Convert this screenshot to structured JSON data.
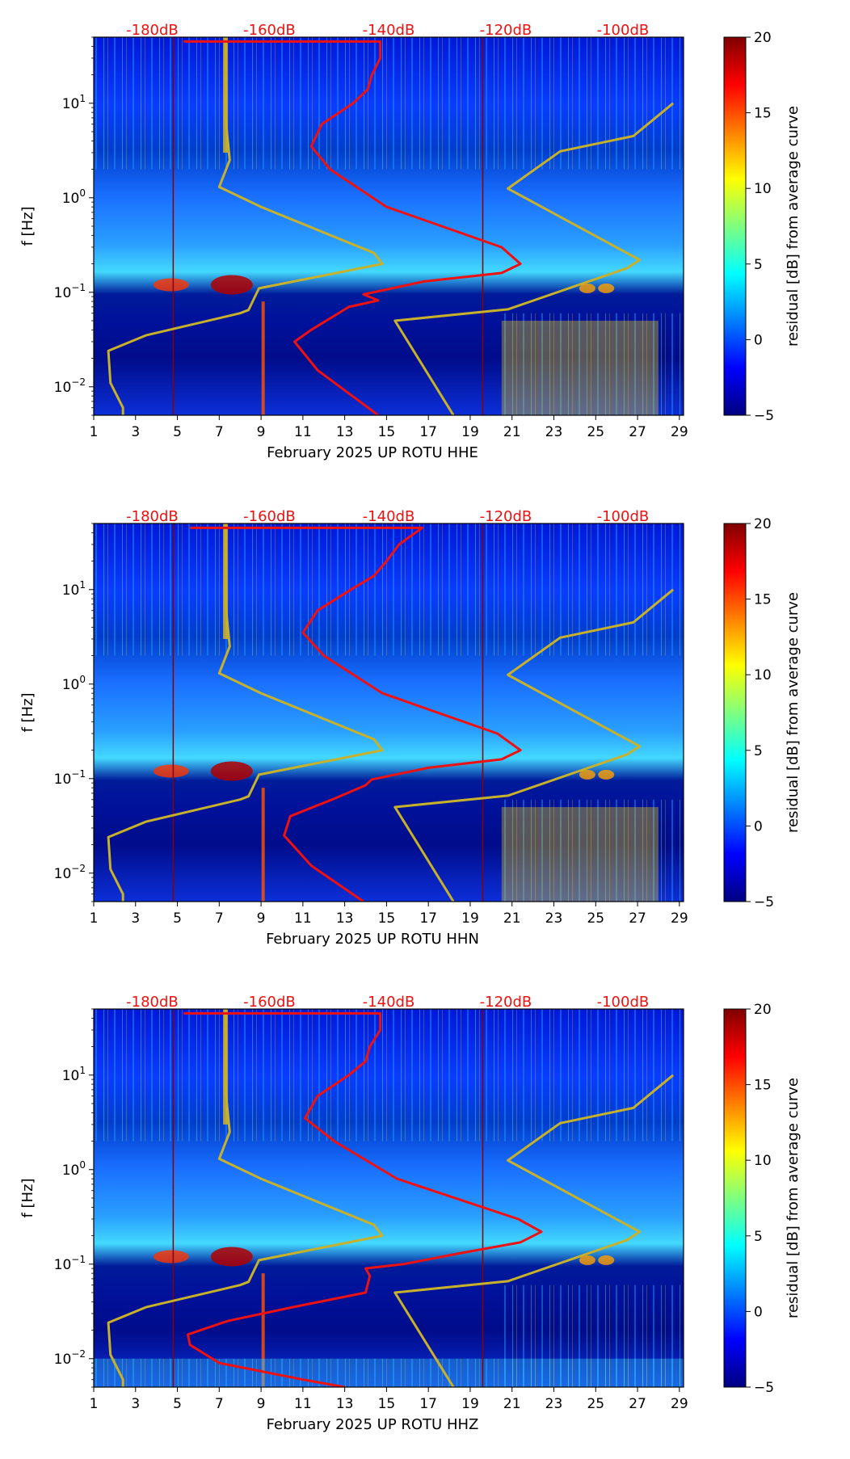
{
  "colors": {
    "noise_model": "#c8b12a",
    "psd_curve": "#ee1111",
    "db_scale_text": "#ee1111",
    "marker_line": "#8b0000",
    "colormap": [
      "#00007f",
      "#0000ff",
      "#007fff",
      "#00ffff",
      "#7fff7f",
      "#ffff00",
      "#ff7f00",
      "#ff0000",
      "#7f0000"
    ]
  },
  "chart_data": [
    {
      "type": "heatmap",
      "title": "",
      "xlabel": "February 2025 UP ROTU  HHE",
      "ylabel": "f [Hz]",
      "xlim": [
        1,
        29.2
      ],
      "ylim": [
        0.005,
        50
      ],
      "yscale": "log",
      "x_ticks": [
        1,
        3,
        5,
        7,
        9,
        11,
        13,
        15,
        17,
        19,
        21,
        23,
        25,
        27,
        29
      ],
      "y_ticks": [
        {
          "value": 0.01,
          "base": "10",
          "exp": "−2"
        },
        {
          "value": 0.1,
          "base": "10",
          "exp": "−1"
        },
        {
          "value": 1,
          "base": "10",
          "exp": "0"
        },
        {
          "value": 10,
          "base": "10",
          "exp": "1"
        }
      ],
      "db_scale": {
        "labels": [
          "-180dB",
          "-160dB",
          "-140dB",
          "-120dB",
          "-100dB"
        ],
        "positions": [
          3.8,
          9.4,
          15.1,
          20.7,
          26.3
        ]
      },
      "colorbar": {
        "label": "residual [dB] from average curve",
        "range": [
          -5,
          20
        ],
        "ticks": [
          "−5",
          "0",
          "5",
          "10",
          "15",
          "20"
        ],
        "tick_values": [
          -5,
          0,
          5,
          10,
          15,
          20
        ]
      },
      "marker_lines_x": [
        4.8,
        19.6
      ],
      "series": [
        {
          "name": "noise model",
          "points": [
            [
              2.4,
              0.005
            ],
            [
              2.4,
              0.006
            ],
            [
              1.8,
              0.011
            ],
            [
              1.7,
              0.024
            ],
            [
              3.5,
              0.035
            ],
            [
              8.0,
              0.06
            ],
            [
              8.4,
              0.065
            ],
            [
              8.9,
              0.11
            ],
            [
              14.8,
              0.2
            ],
            [
              14.4,
              0.26
            ],
            [
              9.0,
              0.8
            ],
            [
              7.0,
              1.3
            ],
            [
              7.5,
              2.5
            ],
            [
              7.3,
              7.0
            ],
            [
              7.3,
              50
            ]
          ]
        },
        {
          "name": "noise model",
          "points": [
            [
              18.2,
              0.005
            ],
            [
              15.4,
              0.05
            ],
            [
              20.8,
              0.066
            ],
            [
              26.5,
              0.18
            ],
            [
              27.1,
              0.22
            ],
            [
              20.8,
              1.25
            ],
            [
              23.3,
              3.1
            ],
            [
              26.8,
              4.5
            ],
            [
              28.7,
              10
            ]
          ]
        },
        {
          "name": "PSD curve",
          "points": [
            [
              14.6,
              0.005
            ],
            [
              11.7,
              0.015
            ],
            [
              10.6,
              0.03
            ],
            [
              11.4,
              0.04
            ],
            [
              13.2,
              0.07
            ],
            [
              14.6,
              0.082
            ],
            [
              13.9,
              0.095
            ],
            [
              16.8,
              0.13
            ],
            [
              20.5,
              0.16
            ],
            [
              21.4,
              0.2
            ],
            [
              20.5,
              0.3
            ],
            [
              15.0,
              0.8
            ],
            [
              12.3,
              2.0
            ],
            [
              11.4,
              3.5
            ],
            [
              11.9,
              6.0
            ],
            [
              13.4,
              10.0
            ],
            [
              14.1,
              14.0
            ],
            [
              14.3,
              20.0
            ],
            [
              14.7,
              30.0
            ],
            [
              14.7,
              45.0
            ],
            [
              5.3,
              45.0
            ]
          ]
        }
      ]
    },
    {
      "type": "heatmap",
      "title": "",
      "xlabel": "February 2025 UP ROTU  HHN",
      "ylabel": "f [Hz]",
      "xlim": [
        1,
        29.2
      ],
      "ylim": [
        0.005,
        50
      ],
      "yscale": "log",
      "x_ticks": [
        1,
        3,
        5,
        7,
        9,
        11,
        13,
        15,
        17,
        19,
        21,
        23,
        25,
        27,
        29
      ],
      "y_ticks": [
        {
          "value": 0.01,
          "base": "10",
          "exp": "−2"
        },
        {
          "value": 0.1,
          "base": "10",
          "exp": "−1"
        },
        {
          "value": 1,
          "base": "10",
          "exp": "0"
        },
        {
          "value": 10,
          "base": "10",
          "exp": "1"
        }
      ],
      "db_scale": {
        "labels": [
          "-180dB",
          "-160dB",
          "-140dB",
          "-120dB",
          "-100dB"
        ],
        "positions": [
          3.8,
          9.4,
          15.1,
          20.7,
          26.3
        ]
      },
      "colorbar": {
        "label": "residual [dB] from average curve",
        "range": [
          -5,
          20
        ],
        "ticks": [
          "−5",
          "0",
          "5",
          "10",
          "15",
          "20"
        ],
        "tick_values": [
          -5,
          0,
          5,
          10,
          15,
          20
        ]
      },
      "marker_lines_x": [
        4.8,
        19.6
      ],
      "series": [
        {
          "name": "noise model",
          "points": [
            [
              2.4,
              0.005
            ],
            [
              2.4,
              0.006
            ],
            [
              1.8,
              0.011
            ],
            [
              1.7,
              0.024
            ],
            [
              3.5,
              0.035
            ],
            [
              8.0,
              0.06
            ],
            [
              8.4,
              0.065
            ],
            [
              8.9,
              0.11
            ],
            [
              14.8,
              0.2
            ],
            [
              14.4,
              0.26
            ],
            [
              9.0,
              0.8
            ],
            [
              7.0,
              1.3
            ],
            [
              7.5,
              2.5
            ],
            [
              7.3,
              7.0
            ],
            [
              7.3,
              50
            ]
          ]
        },
        {
          "name": "noise model",
          "points": [
            [
              18.2,
              0.005
            ],
            [
              15.4,
              0.05
            ],
            [
              20.8,
              0.066
            ],
            [
              26.5,
              0.18
            ],
            [
              27.1,
              0.22
            ],
            [
              20.8,
              1.25
            ],
            [
              23.3,
              3.1
            ],
            [
              26.8,
              4.5
            ],
            [
              28.7,
              10
            ]
          ]
        },
        {
          "name": "PSD curve",
          "points": [
            [
              13.9,
              0.005
            ],
            [
              11.4,
              0.012
            ],
            [
              10.1,
              0.025
            ],
            [
              10.4,
              0.04
            ],
            [
              12.4,
              0.06
            ],
            [
              14.0,
              0.085
            ],
            [
              14.3,
              0.098
            ],
            [
              17.0,
              0.13
            ],
            [
              20.5,
              0.16
            ],
            [
              21.4,
              0.2
            ],
            [
              20.3,
              0.3
            ],
            [
              14.8,
              0.8
            ],
            [
              12.0,
              2.0
            ],
            [
              11.0,
              3.5
            ],
            [
              11.7,
              6.0
            ],
            [
              13.3,
              10.0
            ],
            [
              14.4,
              14.0
            ],
            [
              15.0,
              20.0
            ],
            [
              15.6,
              30.0
            ],
            [
              16.7,
              45.0
            ],
            [
              5.6,
              45.0
            ]
          ]
        }
      ]
    },
    {
      "type": "heatmap",
      "title": "",
      "xlabel": "February 2025 UP ROTU  HHZ",
      "ylabel": "f [Hz]",
      "xlim": [
        1,
        29.2
      ],
      "ylim": [
        0.005,
        50
      ],
      "yscale": "log",
      "x_ticks": [
        1,
        3,
        5,
        7,
        9,
        11,
        13,
        15,
        17,
        19,
        21,
        23,
        25,
        27,
        29
      ],
      "y_ticks": [
        {
          "value": 0.01,
          "base": "10",
          "exp": "−2"
        },
        {
          "value": 0.1,
          "base": "10",
          "exp": "−1"
        },
        {
          "value": 1,
          "base": "10",
          "exp": "0"
        },
        {
          "value": 10,
          "base": "10",
          "exp": "1"
        }
      ],
      "db_scale": {
        "labels": [
          "-180dB",
          "-160dB",
          "-140dB",
          "-120dB",
          "-100dB"
        ],
        "positions": [
          3.8,
          9.4,
          15.1,
          20.7,
          26.3
        ]
      },
      "colorbar": {
        "label": "residual [dB] from average curve",
        "range": [
          -5,
          20
        ],
        "ticks": [
          "−5",
          "0",
          "5",
          "10",
          "15",
          "20"
        ],
        "tick_values": [
          -5,
          0,
          5,
          10,
          15,
          20
        ]
      },
      "marker_lines_x": [
        4.8,
        19.6
      ],
      "series": [
        {
          "name": "noise model",
          "points": [
            [
              2.4,
              0.005
            ],
            [
              2.4,
              0.006
            ],
            [
              1.8,
              0.011
            ],
            [
              1.7,
              0.024
            ],
            [
              3.5,
              0.035
            ],
            [
              8.0,
              0.06
            ],
            [
              8.4,
              0.065
            ],
            [
              8.9,
              0.11
            ],
            [
              14.8,
              0.2
            ],
            [
              14.4,
              0.26
            ],
            [
              9.0,
              0.8
            ],
            [
              7.0,
              1.3
            ],
            [
              7.5,
              2.5
            ],
            [
              7.3,
              7.0
            ],
            [
              7.3,
              50
            ]
          ]
        },
        {
          "name": "noise model",
          "points": [
            [
              18.2,
              0.005
            ],
            [
              15.4,
              0.05
            ],
            [
              20.8,
              0.066
            ],
            [
              26.5,
              0.18
            ],
            [
              27.1,
              0.22
            ],
            [
              20.8,
              1.25
            ],
            [
              23.3,
              3.1
            ],
            [
              26.8,
              4.5
            ],
            [
              28.7,
              10
            ]
          ]
        },
        {
          "name": "PSD curve",
          "points": [
            [
              13.0,
              0.005
            ],
            [
              11.0,
              0.006
            ],
            [
              7.0,
              0.009
            ],
            [
              5.6,
              0.014
            ],
            [
              5.5,
              0.018
            ],
            [
              7.4,
              0.025
            ],
            [
              10.5,
              0.035
            ],
            [
              14.0,
              0.05
            ],
            [
              14.2,
              0.075
            ],
            [
              14.0,
              0.09
            ],
            [
              15.8,
              0.1
            ],
            [
              18.5,
              0.13
            ],
            [
              21.4,
              0.17
            ],
            [
              22.4,
              0.22
            ],
            [
              21.3,
              0.3
            ],
            [
              15.5,
              0.8
            ],
            [
              12.5,
              2.0
            ],
            [
              11.1,
              3.5
            ],
            [
              11.7,
              6.0
            ],
            [
              13.2,
              10.0
            ],
            [
              14.0,
              14.0
            ],
            [
              14.2,
              20.0
            ],
            [
              14.7,
              30.0
            ],
            [
              14.7,
              45.0
            ],
            [
              5.3,
              45.0
            ]
          ]
        }
      ]
    }
  ]
}
